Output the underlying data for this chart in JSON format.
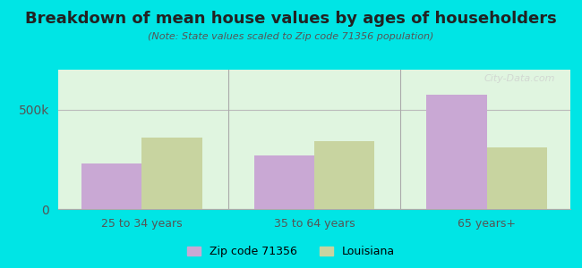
{
  "title": "Breakdown of mean house values by ages of householders",
  "subtitle": "(Note: State values scaled to Zip code 71356 population)",
  "categories": [
    "25 to 34 years",
    "35 to 64 years",
    "65 years+"
  ],
  "zip_values": [
    230000,
    270000,
    575000
  ],
  "state_values": [
    360000,
    340000,
    310000
  ],
  "ylim": [
    0,
    700000
  ],
  "yticks": [
    0,
    500000
  ],
  "ytick_labels": [
    "0",
    "500k"
  ],
  "zip_color": "#c9a8d4",
  "state_color": "#c8d4a0",
  "background_color": "#e0f5e0",
  "outer_background": "#00e5e5",
  "legend_zip_label": "Zip code 71356",
  "legend_state_label": "Louisiana",
  "bar_width": 0.35,
  "watermark": "City-Data.com"
}
